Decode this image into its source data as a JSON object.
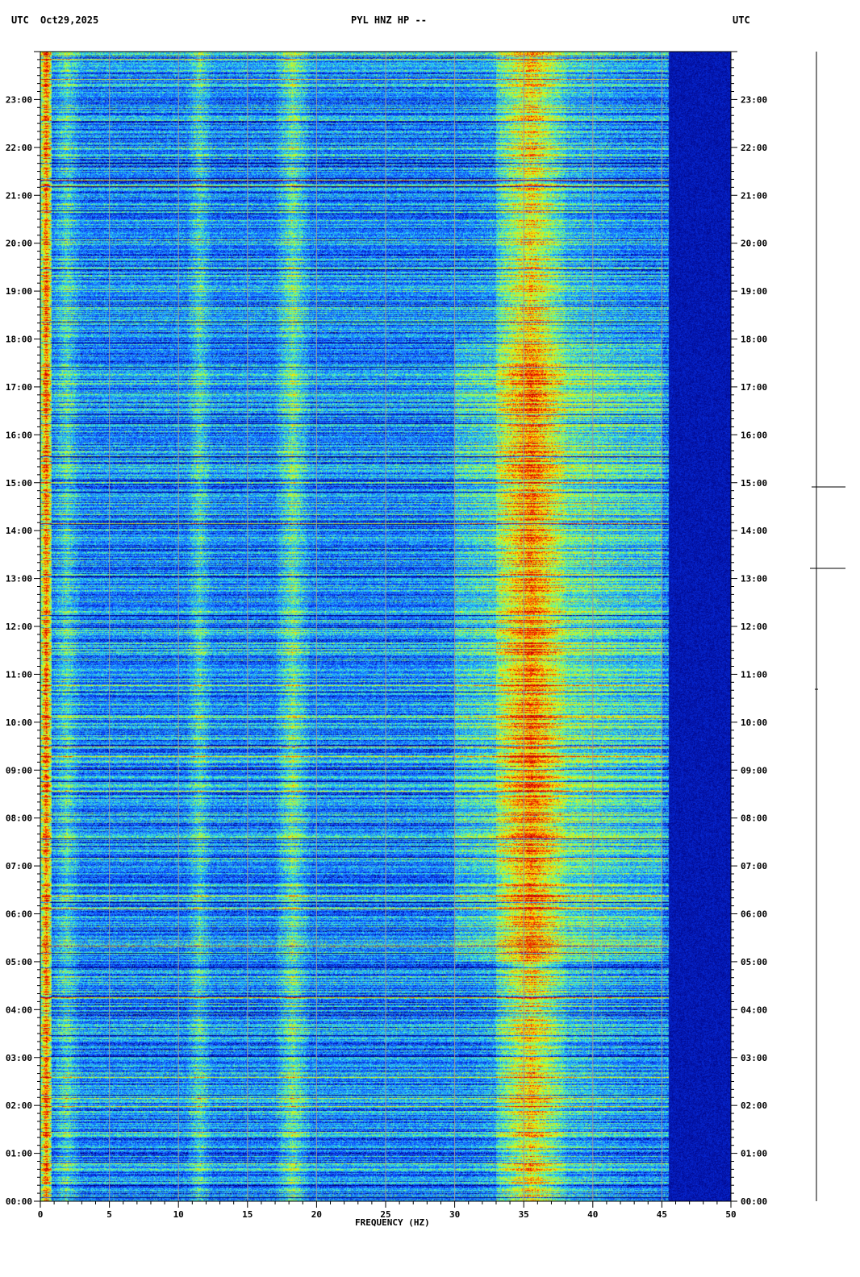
{
  "header": {
    "left_tz": "UTC",
    "date": "Oct29,2025",
    "station": "PYL HNZ HP --",
    "right_tz": "UTC"
  },
  "chart_data": {
    "type": "heatmap",
    "title": "PYL HNZ HP --",
    "xlabel": "FREQUENCY (HZ)",
    "x_range": [
      0,
      50
    ],
    "x_major_ticks": [
      0,
      5,
      10,
      15,
      20,
      25,
      30,
      35,
      40,
      45,
      50
    ],
    "x_minor_step": 1,
    "y_range_hours": [
      0,
      24
    ],
    "y_tick_labels": [
      "00:00",
      "01:00",
      "02:00",
      "03:00",
      "04:00",
      "05:00",
      "06:00",
      "07:00",
      "08:00",
      "09:00",
      "10:00",
      "11:00",
      "12:00",
      "13:00",
      "14:00",
      "15:00",
      "16:00",
      "17:00",
      "18:00",
      "19:00",
      "20:00",
      "21:00",
      "22:00",
      "23:00"
    ],
    "y_minor_step_minutes": 10,
    "grid": true,
    "colormap": [
      "#00007a",
      "#0a3cff",
      "#1e8cff",
      "#33e6e6",
      "#a8ff3c",
      "#ffe600",
      "#ff3c00",
      "#c80000"
    ],
    "noise_bands": [
      {
        "f_start": 0,
        "f_end": 0.8,
        "level": 0.85
      },
      {
        "f_start": 0.8,
        "f_end": 3,
        "level": 0.45
      },
      {
        "f_start": 10.5,
        "f_end": 12.5,
        "level": 0.45
      },
      {
        "f_start": 17,
        "f_end": 19.5,
        "level": 0.5
      },
      {
        "f_start": 29,
        "f_end": 45,
        "level": 0.4
      },
      {
        "f_start": 33,
        "f_end": 38,
        "level": 0.7
      }
    ],
    "rolloff_hz": 45.5
  }
}
